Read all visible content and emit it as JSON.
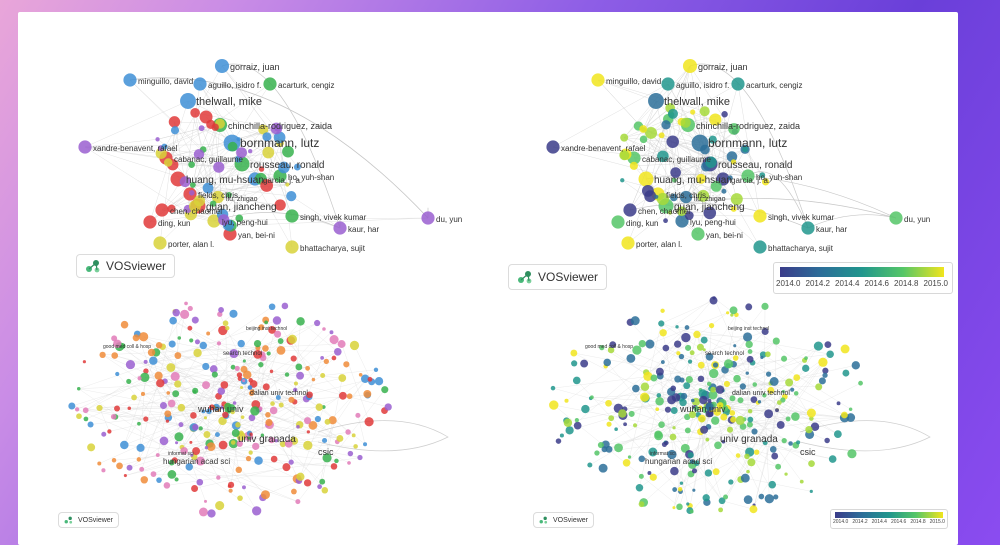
{
  "colors": {
    "background_gradient": [
      "#e9a6d9",
      "#8e5ee6",
      "#6a3fd9"
    ],
    "cluster_red": "#e0393a",
    "cluster_blue": "#3e8fd6",
    "cluster_green": "#37b24d",
    "cluster_yellow": "#d8d23a",
    "cluster_purple": "#9a5fd0",
    "overlay_low": "#3b3c8a",
    "overlay_high": "#f1e51d"
  },
  "author_nodes": [
    {
      "label": "gorraiz, juan",
      "cluster": "blue"
    },
    {
      "label": "minguillo, david",
      "cluster": "blue"
    },
    {
      "label": "aguillo, isidro f.",
      "cluster": "blue"
    },
    {
      "label": "acarturk, cengiz",
      "cluster": "green"
    },
    {
      "label": "thelwall, mike",
      "cluster": "blue"
    },
    {
      "label": "chinchilla-rodriguez, zaida",
      "cluster": "green"
    },
    {
      "label": "xandre-benavent, rafael",
      "cluster": "purple"
    },
    {
      "label": "bornmann, lutz",
      "cluster": "blue"
    },
    {
      "label": "cabanac, guillaume",
      "cluster": "red"
    },
    {
      "label": "rousseau, ronald",
      "cluster": "green"
    },
    {
      "label": "ho, yuh-shan",
      "cluster": "green"
    },
    {
      "label": "huang, mu-hsuan",
      "cluster": "red"
    },
    {
      "label": "garcia, j. a.",
      "cluster": "blue"
    },
    {
      "label": "fields, chris",
      "cluster": "red"
    },
    {
      "label": "liu, zhigao",
      "cluster": "yellow"
    },
    {
      "label": "guan, jiancheng",
      "cluster": "red"
    },
    {
      "label": "chen, chaomei",
      "cluster": "red"
    },
    {
      "label": "singh, vivek kumar",
      "cluster": "green"
    },
    {
      "label": "ding, kun",
      "cluster": "red"
    },
    {
      "label": "lyu, peng-hui",
      "cluster": "yellow"
    },
    {
      "label": "du, yun",
      "cluster": "purple"
    },
    {
      "label": "kaur, har",
      "cluster": "purple"
    },
    {
      "label": "yan, bei-ni",
      "cluster": "red"
    },
    {
      "label": "bhattacharya, sujit",
      "cluster": "yellow"
    },
    {
      "label": "porter, alan l.",
      "cluster": "yellow"
    }
  ],
  "institution_labels": {
    "wuhan": "wuhan univ",
    "granada": "univ granada",
    "csic": "csic",
    "hungarian": "hungarian acad sci",
    "search": "search technol",
    "dalian": "dalian univ technol",
    "beijing": "beijing inst technol",
    "goed": "good med coll & hosp",
    "informat": "informat sci"
  },
  "watermark": "VOSviewer",
  "overlay_scale": {
    "ticks": [
      "2014.0",
      "2014.2",
      "2014.4",
      "2014.6",
      "2014.8",
      "2015.0"
    ]
  }
}
